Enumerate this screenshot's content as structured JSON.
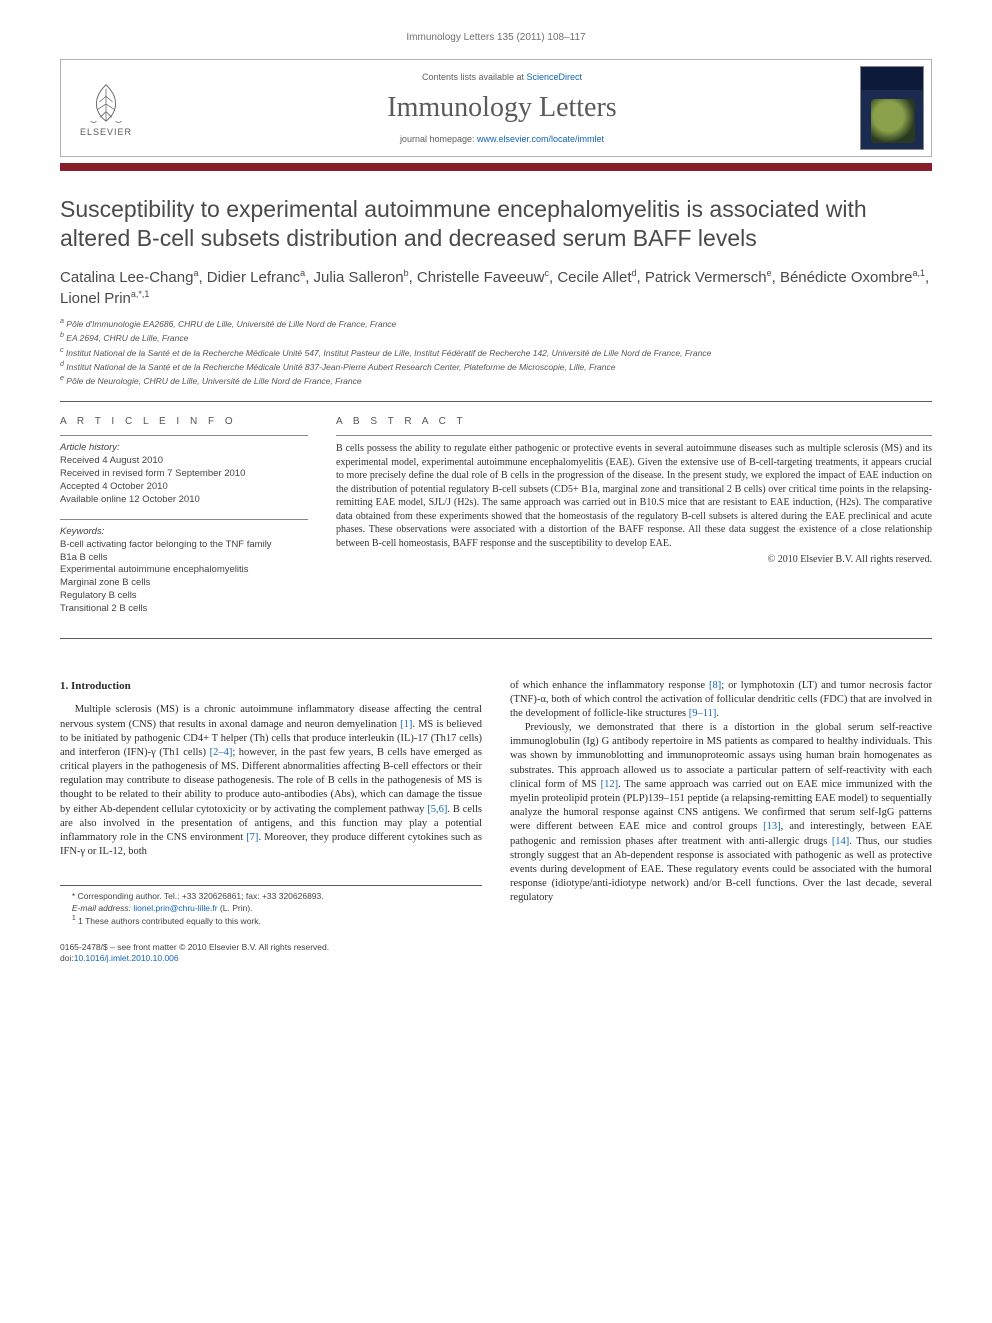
{
  "running_head": "Immunology Letters 135 (2011) 108–117",
  "masthead": {
    "contents_prefix": "Contents lists available at ",
    "contents_link": "ScienceDirect",
    "journal": "Immunology Letters",
    "homepage_prefix": "journal homepage: ",
    "homepage_url": "www.elsevier.com/locate/immlet",
    "publisher": "ELSEVIER"
  },
  "colors": {
    "bar": "#881f2a",
    "link": "#1165b5"
  },
  "title": "Susceptibility to experimental autoimmune encephalomyelitis is associated with altered B-cell subsets distribution and decreased serum BAFF levels",
  "authors_html": "Catalina Lee-Chang<sup>a</sup>, Didier Lefranc<sup>a</sup>, Julia Salleron<sup>b</sup>, Christelle Faveeuw<sup>c</sup>, Cecile Allet<sup>d</sup>, Patrick Vermersch<sup>e</sup>, Bénédicte Oxombre<sup>a,1</sup>, Lionel Prin<sup>a,*,1</sup>",
  "affiliations": [
    "a Pôle d'Immunologie EA2686, CHRU de Lille, Université de Lille Nord de France, France",
    "b EA 2694, CHRU de Lille, France",
    "c Institut National de la Santé et de la Recherche Médicale Unité 547, Institut Pasteur de Lille, Institut Fédératif de Recherche 142, Université de Lille Nord de France, France",
    "d Institut National de la Santé et de la Recherche Médicale Unité 837-Jean-Pierre Aubert Research Center, Plateforme de Microscopie, Lille, France",
    "e Pôle de Neurologie, CHRU de Lille, Université de Lille Nord de France, France"
  ],
  "article_info": {
    "head": "A R T I C L E  I N F O",
    "history_label": "Article history:",
    "history": [
      "Received 4 August 2010",
      "Received in revised form 7 September 2010",
      "Accepted 4 October 2010",
      "Available online 12 October 2010"
    ],
    "keywords_label": "Keywords:",
    "keywords": [
      "B-cell activating factor belonging to the TNF family",
      "B1a B cells",
      "Experimental autoimmune encephalomyelitis",
      "Marginal zone B cells",
      "Regulatory B cells",
      "Transitional 2 B cells"
    ]
  },
  "abstract": {
    "head": "A B S T R A C T",
    "text": "B cells possess the ability to regulate either pathogenic or protective events in several autoimmune diseases such as multiple sclerosis (MS) and its experimental model, experimental autoimmune encephalomyelitis (EAE). Given the extensive use of B-cell-targeting treatments, it appears crucial to more precisely define the dual role of B cells in the progression of the disease. In the present study, we explored the impact of EAE induction on the distribution of potential regulatory B-cell subsets (CD5+ B1a, marginal zone and transitional 2 B cells) over critical time points in the relapsing-remitting EAE model, SJL/J (H2s). The same approach was carried out in B10.S mice that are resistant to EAE induction, (H2s). The comparative data obtained from these experiments showed that the homeostasis of the regulatory B-cell subsets is altered during the EAE preclinical and acute phases. These observations were associated with a distortion of the BAFF response. All these data suggest the existence of a close relationship between B-cell homeostasis, BAFF response and the susceptibility to develop EAE.",
    "copyright": "© 2010 Elsevier B.V. All rights reserved."
  },
  "body": {
    "section_number": "1.",
    "section_title": "Introduction",
    "col1": "Multiple sclerosis (MS) is a chronic autoimmune inflammatory disease affecting the central nervous system (CNS) that results in axonal damage and neuron demyelination [1]. MS is believed to be initiated by pathogenic CD4+ T helper (Th) cells that produce interleukin (IL)-17 (Th17 cells) and interferon (IFN)-γ (Th1 cells) [2–4]; however, in the past few years, B cells have emerged as critical players in the pathogenesis of MS. Different abnormalities affecting B-cell effectors or their regulation may contribute to disease pathogenesis. The role of B cells in the pathogenesis of MS is thought to be related to their ability to produce auto-antibodies (Abs), which can damage the tissue by either Ab-dependent cellular cytotoxicity or by activating the complement pathway [5,6]. B cells are also involved in the presentation of antigens, and this function may play a potential inflammatory role in the CNS environment [7]. Moreover, they produce different cytokines such as IFN-γ or IL-12, both",
    "col2_p1": "of which enhance the inflammatory response [8]; or lymphotoxin (LT) and tumor necrosis factor (TNF)-α, both of which control the activation of follicular dendritic cells (FDC) that are involved in the development of follicle-like structures [9–11].",
    "col2_p2": "Previously, we demonstrated that there is a distortion in the global serum self-reactive immunoglobulin (Ig) G antibody repertoire in MS patients as compared to healthy individuals. This was shown by immunoblotting and immunoproteomic assays using human brain homogenates as substrates. This approach allowed us to associate a particular pattern of self-reactivity with each clinical form of MS [12]. The same approach was carried out on EAE mice immunized with the myelin proteolipid protein (PLP)139–151 peptide (a relapsing-remitting EAE model) to sequentially analyze the humoral response against CNS antigens. We confirmed that serum self-IgG patterns were different between EAE mice and control groups [13], and interestingly, between EAE pathogenic and remission phases after treatment with anti-allergic drugs [14]. Thus, our studies strongly suggest that an Ab-dependent response is associated with pathogenic as well as protective events during development of EAE. These regulatory events could be associated with the humoral response (idiotype/anti-idiotype network) and/or B-cell functions. Over the last decade, several regulatory"
  },
  "footnotes": {
    "corresponding": "* Corresponding author. Tel.: +33 320626861; fax: +33 320626893.",
    "email_label": "E-mail address:",
    "email": "lionel.prin@chru-lille.fr",
    "email_who": "(L. Prin).",
    "equal": "1 These authors contributed equally to this work."
  },
  "bottom": {
    "line1": "0165-2478/$ – see front matter © 2010 Elsevier B.V. All rights reserved.",
    "doi_label": "doi:",
    "doi": "10.1016/j.imlet.2010.10.006"
  }
}
